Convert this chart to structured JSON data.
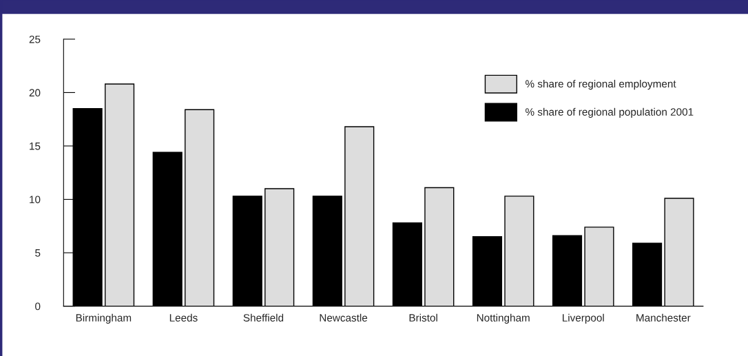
{
  "chart_data": {
    "type": "bar",
    "categories": [
      "Birmingham",
      "Leeds",
      "Sheffield",
      "Newcastle",
      "Bristol",
      "Nottingham",
      "Liverpool",
      "Manchester"
    ],
    "series": [
      {
        "name": "% share of regional population 2001",
        "color": "#000000",
        "values": [
          18.5,
          14.4,
          10.3,
          10.3,
          7.8,
          6.5,
          6.6,
          5.9
        ]
      },
      {
        "name": "% share of regional employment",
        "color": "#dddddd",
        "values": [
          20.8,
          18.4,
          11.0,
          16.8,
          11.1,
          10.3,
          7.4,
          10.1
        ]
      }
    ],
    "ylim": [
      0,
      25
    ],
    "yticks": [
      0,
      5,
      10,
      15,
      20,
      25
    ],
    "grid": false,
    "legend": "top right"
  }
}
